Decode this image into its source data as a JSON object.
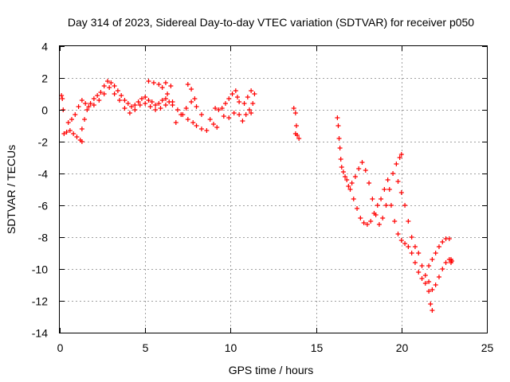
{
  "chart_data": {
    "type": "scatter",
    "title": "Day 314 of 2023, Sidereal Day-to-day VTEC variation (SDTVAR) for receiver p050",
    "xlabel": "GPS time / hours",
    "ylabel": "SDTVAR / TECUs",
    "xlim": [
      0,
      25
    ],
    "ylim": [
      -14,
      4
    ],
    "xticks": [
      0,
      5,
      10,
      15,
      20,
      25
    ],
    "yticks": [
      -14,
      -12,
      -10,
      -8,
      -6,
      -4,
      -2,
      0,
      2,
      4
    ],
    "xtick_labels": [
      "0",
      "5",
      "10",
      "15",
      "20",
      "25"
    ],
    "ytick_labels": [
      "-14",
      "-12",
      "-10",
      "-8",
      "-6",
      "-4",
      "-2",
      "0",
      "2",
      "4"
    ],
    "grid": true,
    "marker": "+",
    "marker_color": "#ff0000",
    "series": [
      {
        "name": "SDTVAR",
        "points": [
          [
            0.1,
            0.9
          ],
          [
            0.15,
            0.7
          ],
          [
            0.2,
            0.0
          ],
          [
            0.25,
            -1.5
          ],
          [
            0.4,
            -1.4
          ],
          [
            0.6,
            -1.3
          ],
          [
            0.8,
            -1.5
          ],
          [
            1.0,
            -1.7
          ],
          [
            1.2,
            -1.9
          ],
          [
            1.3,
            -2.0
          ],
          [
            0.5,
            -0.8
          ],
          [
            0.7,
            -0.6
          ],
          [
            0.9,
            -0.3
          ],
          [
            1.1,
            0.2
          ],
          [
            1.3,
            0.6
          ],
          [
            1.5,
            0.4
          ],
          [
            1.7,
            0.2
          ],
          [
            1.3,
            -1.2
          ],
          [
            1.45,
            -0.6
          ],
          [
            1.6,
            0.0
          ],
          [
            1.8,
            0.4
          ],
          [
            2.0,
            0.7
          ],
          [
            2.2,
            0.9
          ],
          [
            2.4,
            1.1
          ],
          [
            2.6,
            1.5
          ],
          [
            2.8,
            1.8
          ],
          [
            3.0,
            1.7
          ],
          [
            3.2,
            1.5
          ],
          [
            3.4,
            1.2
          ],
          [
            3.6,
            0.9
          ],
          [
            3.8,
            0.6
          ],
          [
            4.0,
            0.4
          ],
          [
            4.2,
            0.2
          ],
          [
            4.4,
            0.3
          ],
          [
            4.6,
            0.5
          ],
          [
            4.8,
            0.7
          ],
          [
            5.0,
            0.8
          ],
          [
            5.2,
            0.6
          ],
          [
            5.4,
            0.5
          ],
          [
            5.6,
            0.3
          ],
          [
            5.8,
            0.4
          ],
          [
            6.0,
            0.6
          ],
          [
            6.2,
            0.7
          ],
          [
            6.4,
            0.5
          ],
          [
            6.6,
            0.3
          ],
          [
            2.0,
            0.3
          ],
          [
            2.3,
            0.6
          ],
          [
            2.6,
            1.0
          ],
          [
            2.9,
            1.4
          ],
          [
            3.2,
            1.0
          ],
          [
            3.5,
            0.6
          ],
          [
            3.8,
            0.1
          ],
          [
            4.1,
            -0.2
          ],
          [
            4.4,
            0.0
          ],
          [
            4.7,
            0.3
          ],
          [
            5.0,
            0.4
          ],
          [
            5.3,
            0.2
          ],
          [
            5.6,
            0.0
          ],
          [
            5.9,
            0.1
          ],
          [
            6.2,
            0.3
          ],
          [
            5.2,
            1.8
          ],
          [
            5.5,
            1.7
          ],
          [
            5.8,
            1.6
          ],
          [
            6.0,
            1.4
          ],
          [
            6.2,
            1.7
          ],
          [
            6.5,
            1.5
          ],
          [
            6.3,
            1.0
          ],
          [
            6.6,
            0.5
          ],
          [
            6.9,
            0.0
          ],
          [
            7.2,
            -0.3
          ],
          [
            7.5,
            -0.6
          ],
          [
            7.8,
            -0.8
          ],
          [
            8.0,
            -1.0
          ],
          [
            8.3,
            -1.2
          ],
          [
            8.6,
            -1.3
          ],
          [
            6.8,
            -0.8
          ],
          [
            7.1,
            -0.3
          ],
          [
            7.4,
            0.1
          ],
          [
            7.7,
            0.5
          ],
          [
            8.0,
            0.2
          ],
          [
            8.3,
            -0.3
          ],
          [
            7.5,
            1.6
          ],
          [
            7.7,
            1.3
          ],
          [
            7.9,
            0.7
          ],
          [
            8.8,
            -0.6
          ],
          [
            9.0,
            -0.9
          ],
          [
            9.2,
            -1.1
          ],
          [
            9.1,
            0.1
          ],
          [
            9.3,
            0.0
          ],
          [
            9.5,
            0.1
          ],
          [
            9.7,
            0.4
          ],
          [
            9.9,
            0.7
          ],
          [
            10.1,
            1.0
          ],
          [
            10.3,
            1.2
          ],
          [
            10.4,
            0.8
          ],
          [
            10.5,
            0.5
          ],
          [
            9.6,
            -0.4
          ],
          [
            9.9,
            -0.5
          ],
          [
            10.2,
            -0.2
          ],
          [
            10.5,
            -0.3
          ],
          [
            10.8,
            0.4
          ],
          [
            11.0,
            0.8
          ],
          [
            11.2,
            1.2
          ],
          [
            11.4,
            1.0
          ],
          [
            11.3,
            0.4
          ],
          [
            11.1,
            0.0
          ],
          [
            10.9,
            -0.3
          ],
          [
            10.7,
            -0.7
          ],
          [
            11.2,
            -0.2
          ],
          [
            13.7,
            0.1
          ],
          [
            13.8,
            -0.2
          ],
          [
            13.85,
            -1.0
          ],
          [
            13.9,
            -1.6
          ],
          [
            14.0,
            -1.8
          ],
          [
            13.8,
            -1.5
          ],
          [
            16.25,
            -0.5
          ],
          [
            16.3,
            -1.0
          ],
          [
            16.35,
            -1.8
          ],
          [
            16.4,
            -2.4
          ],
          [
            16.45,
            -3.1
          ],
          [
            16.5,
            -3.6
          ],
          [
            16.6,
            -3.9
          ],
          [
            16.8,
            -4.4
          ],
          [
            17.0,
            -5.0
          ],
          [
            17.2,
            -5.6
          ],
          [
            17.4,
            -6.2
          ],
          [
            17.6,
            -6.8
          ],
          [
            17.8,
            -7.1
          ],
          [
            18.0,
            -7.2
          ],
          [
            18.2,
            -7.0
          ],
          [
            18.4,
            -6.5
          ],
          [
            18.6,
            -6.0
          ],
          [
            18.8,
            -5.6
          ],
          [
            19.0,
            -5.0
          ],
          [
            19.2,
            -4.4
          ],
          [
            16.7,
            -4.2
          ],
          [
            16.9,
            -4.8
          ],
          [
            17.1,
            -4.6
          ],
          [
            17.3,
            -4.2
          ],
          [
            17.5,
            -3.7
          ],
          [
            17.7,
            -3.3
          ],
          [
            17.9,
            -3.8
          ],
          [
            18.1,
            -4.6
          ],
          [
            18.3,
            -5.6
          ],
          [
            18.5,
            -6.6
          ],
          [
            18.7,
            -7.2
          ],
          [
            18.9,
            -6.8
          ],
          [
            19.1,
            -6.0
          ],
          [
            19.3,
            -5.0
          ],
          [
            19.5,
            -4.0
          ],
          [
            19.7,
            -3.4
          ],
          [
            19.9,
            -3.0
          ],
          [
            20.0,
            -2.8
          ],
          [
            19.4,
            -6.0
          ],
          [
            19.6,
            -7.0
          ],
          [
            19.8,
            -7.8
          ],
          [
            20.0,
            -8.2
          ],
          [
            20.2,
            -8.4
          ],
          [
            20.4,
            -8.6
          ],
          [
            20.6,
            -9.0
          ],
          [
            20.8,
            -9.6
          ],
          [
            21.0,
            -10.2
          ],
          [
            21.2,
            -10.6
          ],
          [
            21.4,
            -10.9
          ],
          [
            21.6,
            -11.4
          ],
          [
            21.7,
            -12.2
          ],
          [
            21.8,
            -12.6
          ],
          [
            19.8,
            -4.5
          ],
          [
            20.0,
            -5.2
          ],
          [
            20.2,
            -6.0
          ],
          [
            20.4,
            -7.0
          ],
          [
            20.6,
            -8.0
          ],
          [
            20.8,
            -8.6
          ],
          [
            21.0,
            -9.0
          ],
          [
            21.2,
            -9.8
          ],
          [
            21.4,
            -10.4
          ],
          [
            21.6,
            -10.8
          ],
          [
            21.8,
            -11.3
          ],
          [
            22.0,
            -11.0
          ],
          [
            22.2,
            -10.5
          ],
          [
            22.4,
            -10.0
          ],
          [
            22.6,
            -9.6
          ],
          [
            22.8,
            -9.4
          ],
          [
            21.6,
            -9.8
          ],
          [
            21.8,
            -9.4
          ],
          [
            22.0,
            -9.0
          ],
          [
            22.2,
            -8.6
          ],
          [
            22.4,
            -8.3
          ],
          [
            22.6,
            -8.1
          ],
          [
            22.8,
            -8.1
          ],
          [
            22.9,
            -9.4
          ],
          [
            22.9,
            -9.6
          ],
          [
            22.95,
            -9.5
          ]
        ]
      }
    ]
  }
}
